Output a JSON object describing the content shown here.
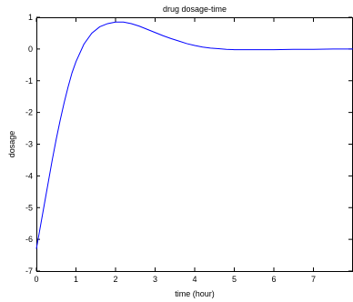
{
  "chart_data": {
    "type": "line",
    "title": "drug dosage-time",
    "xlabel": "time (hour)",
    "ylabel": "dosage",
    "xlim": [
      0,
      8
    ],
    "ylim": [
      -7,
      1
    ],
    "x_ticks": [
      0,
      1,
      2,
      3,
      4,
      5,
      6,
      7
    ],
    "y_ticks": [
      1,
      0,
      -1,
      -2,
      -3,
      -4,
      -5,
      -6,
      -7
    ],
    "grid": false,
    "legend": "none",
    "series": [
      {
        "color": "#0000ff",
        "x": [
          0,
          0.1,
          0.2,
          0.3,
          0.4,
          0.5,
          0.6,
          0.7,
          0.8,
          0.9,
          1.0,
          1.2,
          1.4,
          1.6,
          1.8,
          2.0,
          2.2,
          2.4,
          2.6,
          2.8,
          3.0,
          3.2,
          3.4,
          3.6,
          3.8,
          4.0,
          4.2,
          4.4,
          4.6,
          4.8,
          5.0,
          5.5,
          6.0,
          6.5,
          7.0,
          7.5,
          8.0
        ],
        "y": [
          -6.3,
          -5.6,
          -4.9,
          -4.2,
          -3.5,
          -2.85,
          -2.25,
          -1.7,
          -1.2,
          -0.75,
          -0.4,
          0.15,
          0.5,
          0.7,
          0.8,
          0.85,
          0.85,
          0.8,
          0.72,
          0.62,
          0.52,
          0.42,
          0.33,
          0.25,
          0.17,
          0.11,
          0.06,
          0.03,
          0.01,
          -0.01,
          -0.02,
          -0.02,
          -0.02,
          -0.01,
          -0.01,
          0.0,
          0.0
        ]
      }
    ]
  }
}
